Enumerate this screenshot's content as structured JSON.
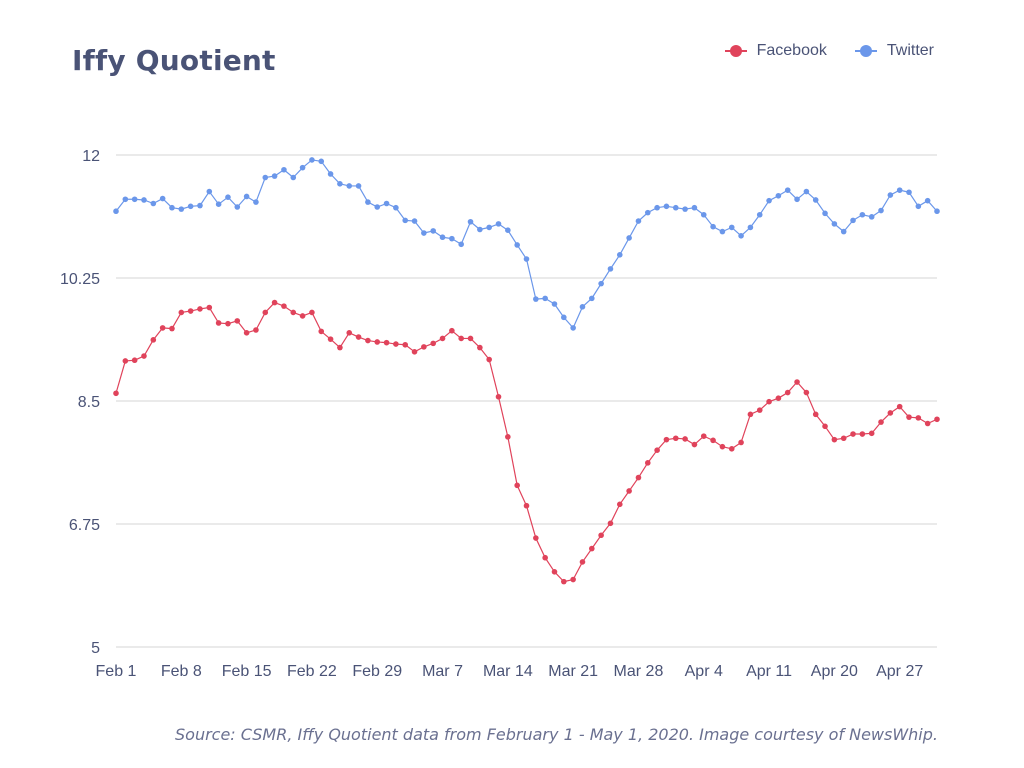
{
  "title": "Iffy Quotient",
  "source_note": "Source: CSMR, Iffy Quotient data from February 1 - May 1, 2020. Image courtesy of NewsWhip.",
  "colors": {
    "facebook": "#e0435b",
    "twitter": "#6b97ea",
    "grid": "#d6d6d6",
    "text": "#4a5376"
  },
  "legend": [
    {
      "label": "Facebook",
      "color": "#e0435b"
    },
    {
      "label": "Twitter",
      "color": "#6b97ea"
    }
  ],
  "chart_data": {
    "type": "line",
    "title": "Iffy Quotient",
    "xlabel": "",
    "ylabel": "",
    "ylim": [
      5,
      12
    ],
    "yticks": [
      "5",
      "6.75",
      "8.5",
      "10.25",
      "12"
    ],
    "ytick_values": [
      5,
      6.75,
      8.5,
      10.25,
      12
    ],
    "xticks": [
      {
        "label": "Feb 1",
        "day": 0
      },
      {
        "label": "Feb 8",
        "day": 7
      },
      {
        "label": "Feb 15",
        "day": 14
      },
      {
        "label": "Feb 22",
        "day": 21
      },
      {
        "label": "Feb 29",
        "day": 28
      },
      {
        "label": "Mar 7",
        "day": 35
      },
      {
        "label": "Mar 14",
        "day": 42
      },
      {
        "label": "Mar 21",
        "day": 49
      },
      {
        "label": "Mar 28",
        "day": 56
      },
      {
        "label": "Apr 4",
        "day": 63
      },
      {
        "label": "Apr 11",
        "day": 70
      },
      {
        "label": "Apr 20",
        "day": 77
      },
      {
        "label": "Apr 27",
        "day": 84
      }
    ],
    "grid": true,
    "legend_position": "top-right",
    "series": [
      {
        "name": "Twitter",
        "color": "#6b97ea",
        "values": [
          11.2,
          11.37,
          11.37,
          11.36,
          11.31,
          11.38,
          11.25,
          11.23,
          11.27,
          11.28,
          11.48,
          11.3,
          11.4,
          11.26,
          11.41,
          11.33,
          11.68,
          11.7,
          11.79,
          11.68,
          11.82,
          11.93,
          11.91,
          11.73,
          11.59,
          11.56,
          11.56,
          11.33,
          11.26,
          11.31,
          11.25,
          11.07,
          11.06,
          10.89,
          10.92,
          10.83,
          10.81,
          10.73,
          11.05,
          10.94,
          10.97,
          11.02,
          10.93,
          10.72,
          10.52,
          9.95,
          9.96,
          9.88,
          9.69,
          9.54,
          9.84,
          9.96,
          10.17,
          10.38,
          10.58,
          10.82,
          11.06,
          11.18,
          11.25,
          11.27,
          11.25,
          11.23,
          11.25,
          11.15,
          10.98,
          10.91,
          10.97,
          10.85,
          10.97,
          11.15,
          11.35,
          11.42,
          11.5,
          11.37,
          11.48,
          11.36,
          11.17,
          11.02,
          10.91,
          11.07,
          11.15,
          11.12,
          11.21,
          11.43,
          11.5,
          11.47,
          11.27,
          11.35,
          11.2
        ]
      },
      {
        "name": "Facebook",
        "color": "#e0435b",
        "values": [
          8.61,
          9.07,
          9.08,
          9.14,
          9.37,
          9.54,
          9.53,
          9.76,
          9.78,
          9.81,
          9.83,
          9.61,
          9.6,
          9.64,
          9.47,
          9.51,
          9.76,
          9.9,
          9.85,
          9.76,
          9.71,
          9.76,
          9.49,
          9.38,
          9.26,
          9.47,
          9.41,
          9.36,
          9.34,
          9.33,
          9.31,
          9.3,
          9.2,
          9.27,
          9.32,
          9.39,
          9.5,
          9.39,
          9.39,
          9.26,
          9.09,
          8.56,
          7.99,
          7.3,
          7.01,
          6.55,
          6.27,
          6.07,
          5.93,
          5.96,
          6.21,
          6.4,
          6.59,
          6.76,
          7.03,
          7.22,
          7.41,
          7.62,
          7.8,
          7.95,
          7.97,
          7.96,
          7.88,
          8.0,
          7.94,
          7.85,
          7.82,
          7.91,
          8.31,
          8.37,
          8.49,
          8.54,
          8.62,
          8.77,
          8.62,
          8.31,
          8.14,
          7.95,
          7.97,
          8.03,
          8.03,
          8.04,
          8.2,
          8.33,
          8.42,
          8.27,
          8.26,
          8.18,
          8.24
        ]
      }
    ]
  }
}
